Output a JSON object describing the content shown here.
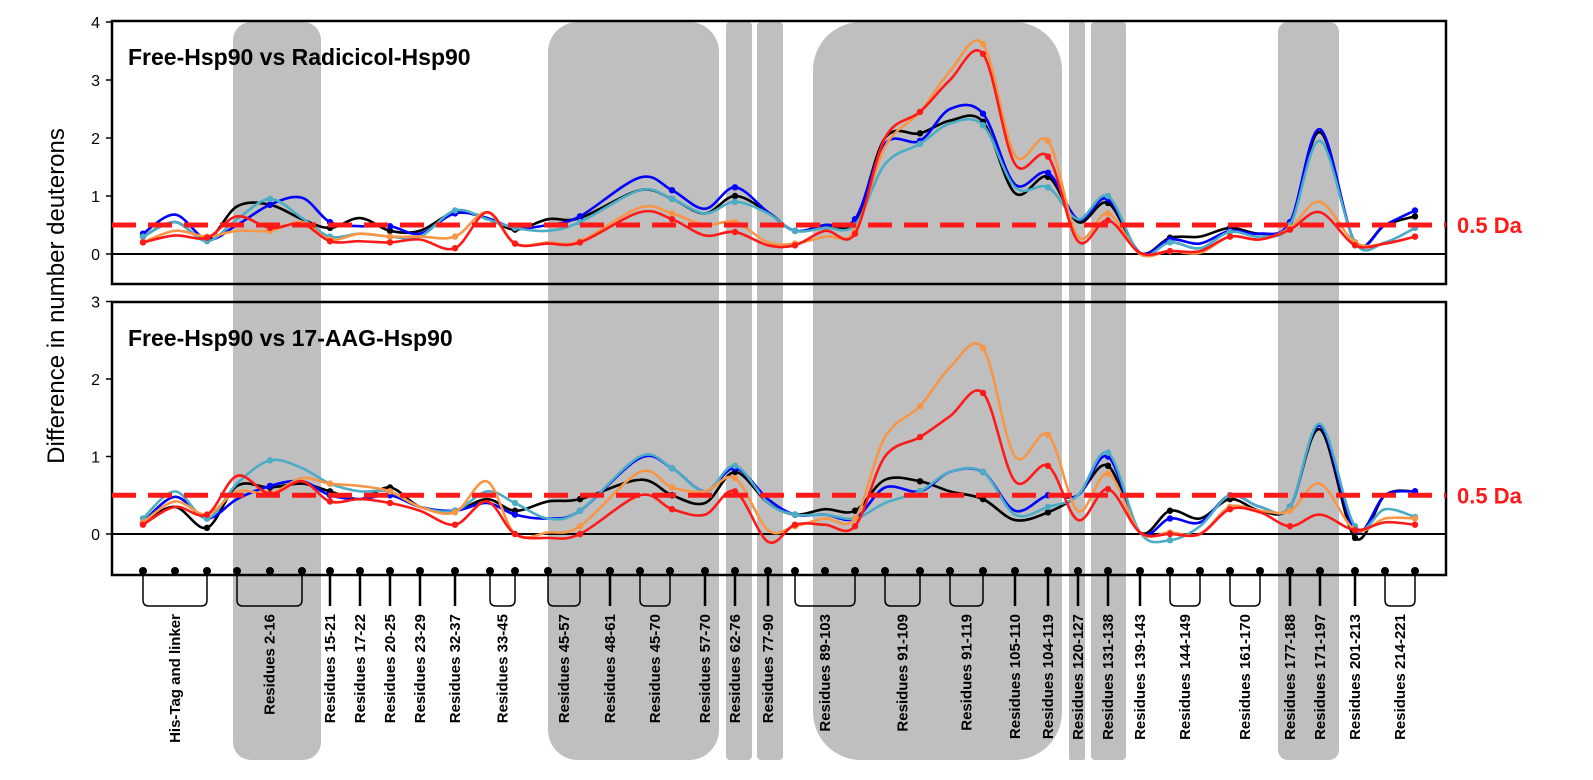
{
  "chart_data": {
    "type": "line",
    "ylabel": "Difference in number deuterons",
    "threshold_label": "0.5 Da",
    "threshold": 0.5,
    "colors": {
      "shade": "#bfbfbf",
      "threshold": "#ff1a1a",
      "series": [
        "#000000",
        "#0000ff",
        "#4bacc6",
        "#f79646",
        "#ff1a1a"
      ]
    },
    "segments": [
      "His-Tag and linker",
      "Residues 2-16",
      "Residues 15-21",
      "Residues 17-22",
      "Residues 20-25",
      "Residues 23-29",
      "Residues 32-37",
      "Residues 33-45",
      "Residues 45-57",
      "Residues 48-61",
      "Residues 45-70",
      "Residues 57-70",
      "Residues 62-76",
      "Residues 77-90",
      "Residues 89-103",
      "Residues 91-109",
      "Residues 91-119",
      "Residues 105-110",
      "Residues 104-119",
      "Residues 120-127",
      "Residues 131-138",
      "Residues 139-143",
      "Residues 144-149",
      "Residues 161-170",
      "Residues 177-188",
      "Residues 171-197",
      "Residues 201-213",
      "Residues 214-221"
    ],
    "panels": [
      {
        "title": "Free-Hsp90 vs Radicicol-Hsp90",
        "yticks": [
          "0",
          "1",
          "2",
          "3",
          "4"
        ],
        "ylim": [
          -0.55,
          4
        ],
        "series": [
          {
            "name": "black",
            "values": [
              0.3,
              0.55,
              0.25,
              0.82,
              0.85,
              0.6,
              0.45,
              0.62,
              0.4,
              0.4,
              0.72,
              0.62,
              0.42,
              0.6,
              0.62,
              1.1,
              0.95,
              0.7,
              1.0,
              0.72,
              0.4,
              0.5,
              0.55,
              2.0,
              2.08,
              2.3,
              2.28,
              1.05,
              1.33,
              0.55,
              0.88,
              0.02,
              0.28,
              0.3,
              0.45,
              0.35,
              0.5,
              2.1,
              0.2,
              0.5,
              0.65
            ]
          },
          {
            "name": "blue",
            "values": [
              0.35,
              0.68,
              0.25,
              0.5,
              0.85,
              0.97,
              0.55,
              0.48,
              0.48,
              0.35,
              0.7,
              0.62,
              0.45,
              0.5,
              0.65,
              1.32,
              1.1,
              0.78,
              1.15,
              0.72,
              0.4,
              0.5,
              0.6,
              1.9,
              1.95,
              2.5,
              2.42,
              1.2,
              1.4,
              0.6,
              0.95,
              0.02,
              0.25,
              0.18,
              0.4,
              0.35,
              0.55,
              2.15,
              0.2,
              0.5,
              0.75
            ]
          },
          {
            "name": "teal",
            "values": [
              0.3,
              0.55,
              0.22,
              0.6,
              0.95,
              0.62,
              0.3,
              0.35,
              0.3,
              0.3,
              0.75,
              0.6,
              0.45,
              0.4,
              0.55,
              1.1,
              0.95,
              0.7,
              0.9,
              0.7,
              0.4,
              0.45,
              0.5,
              1.55,
              1.9,
              2.25,
              2.22,
              1.15,
              1.15,
              0.6,
              1.0,
              0.0,
              0.2,
              0.1,
              0.38,
              0.3,
              0.5,
              1.95,
              0.2,
              0.2,
              0.45
            ]
          },
          {
            "name": "orange",
            "values": [
              0.2,
              0.4,
              0.3,
              0.4,
              0.4,
              0.55,
              0.25,
              0.35,
              0.3,
              0.3,
              0.3,
              0.72,
              0.18,
              0.2,
              0.22,
              0.8,
              0.7,
              0.5,
              0.55,
              0.2,
              0.18,
              0.3,
              0.4,
              1.85,
              2.45,
              3.15,
              3.62,
              1.7,
              1.95,
              0.3,
              0.7,
              0.0,
              0.05,
              0.02,
              0.3,
              0.25,
              0.45,
              0.9,
              0.2,
              0.18,
              0.3
            ]
          },
          {
            "name": "red",
            "values": [
              0.2,
              0.32,
              0.28,
              0.65,
              0.45,
              0.52,
              0.22,
              0.22,
              0.2,
              0.25,
              0.1,
              0.72,
              0.18,
              0.18,
              0.2,
              0.72,
              0.6,
              0.32,
              0.38,
              0.15,
              0.15,
              0.4,
              0.35,
              2.0,
              2.45,
              3.0,
              3.45,
              1.55,
              1.68,
              0.22,
              0.58,
              0.02,
              0.05,
              0.05,
              0.3,
              0.25,
              0.42,
              0.72,
              0.15,
              0.18,
              0.3
            ]
          }
        ]
      },
      {
        "title": "Free-Hsp90 vs 17-AAG-Hsp90",
        "yticks": [
          "0",
          "1",
          "2",
          "3"
        ],
        "ylim": [
          -0.55,
          3
        ],
        "series": [
          {
            "name": "black",
            "values": [
              0.15,
              0.35,
              0.08,
              0.62,
              0.6,
              0.65,
              0.55,
              0.45,
              0.6,
              0.35,
              0.3,
              0.45,
              0.3,
              0.42,
              0.45,
              0.7,
              0.5,
              0.4,
              0.8,
              0.4,
              0.25,
              0.32,
              0.3,
              0.7,
              0.68,
              0.55,
              0.45,
              0.18,
              0.28,
              0.5,
              0.88,
              0.02,
              0.3,
              0.2,
              0.45,
              0.3,
              0.35,
              1.35,
              -0.05,
              0.5,
              0.55
            ]
          },
          {
            "name": "blue",
            "values": [
              0.15,
              0.48,
              0.2,
              0.45,
              0.62,
              0.68,
              0.5,
              0.45,
              0.5,
              0.35,
              0.3,
              0.4,
              0.25,
              0.2,
              0.3,
              0.98,
              0.85,
              0.55,
              0.85,
              0.45,
              0.25,
              0.25,
              0.2,
              0.6,
              0.55,
              0.8,
              0.8,
              0.3,
              0.5,
              0.5,
              1.0,
              0.02,
              0.2,
              0.15,
              0.5,
              0.35,
              0.35,
              1.4,
              0.05,
              0.5,
              0.55
            ]
          },
          {
            "name": "teal",
            "values": [
              0.2,
              0.55,
              0.2,
              0.65,
              0.95,
              0.85,
              0.65,
              0.55,
              0.55,
              0.35,
              0.3,
              0.55,
              0.4,
              0.2,
              0.3,
              1.0,
              0.85,
              0.55,
              0.88,
              0.4,
              0.25,
              0.25,
              0.2,
              0.4,
              0.55,
              0.8,
              0.8,
              0.25,
              0.35,
              0.5,
              1.05,
              0.02,
              -0.08,
              0.1,
              0.5,
              0.35,
              0.35,
              1.42,
              0.1,
              0.32,
              0.22
            ]
          },
          {
            "name": "orange",
            "values": [
              0.15,
              0.42,
              0.25,
              0.55,
              0.52,
              0.72,
              0.65,
              0.62,
              0.55,
              0.35,
              0.28,
              0.68,
              0.0,
              0.02,
              0.1,
              0.8,
              0.6,
              0.55,
              0.72,
              0.05,
              0.1,
              0.2,
              0.2,
              1.25,
              1.65,
              2.15,
              2.4,
              1.0,
              1.28,
              0.3,
              0.78,
              0.02,
              0.02,
              0.0,
              0.35,
              0.3,
              0.3,
              0.65,
              0.05,
              0.2,
              0.2
            ]
          },
          {
            "name": "red",
            "values": [
              0.12,
              0.35,
              0.25,
              0.75,
              0.52,
              0.68,
              0.42,
              0.45,
              0.4,
              0.3,
              0.12,
              0.42,
              0.0,
              -0.05,
              0.0,
              0.5,
              0.32,
              0.25,
              0.55,
              -0.1,
              0.12,
              0.12,
              0.1,
              1.0,
              1.25,
              1.52,
              1.82,
              0.68,
              0.88,
              0.18,
              0.58,
              0.02,
              0.0,
              0.0,
              0.32,
              0.28,
              0.1,
              0.25,
              0.05,
              0.15,
              0.12
            ]
          }
        ]
      }
    ]
  }
}
